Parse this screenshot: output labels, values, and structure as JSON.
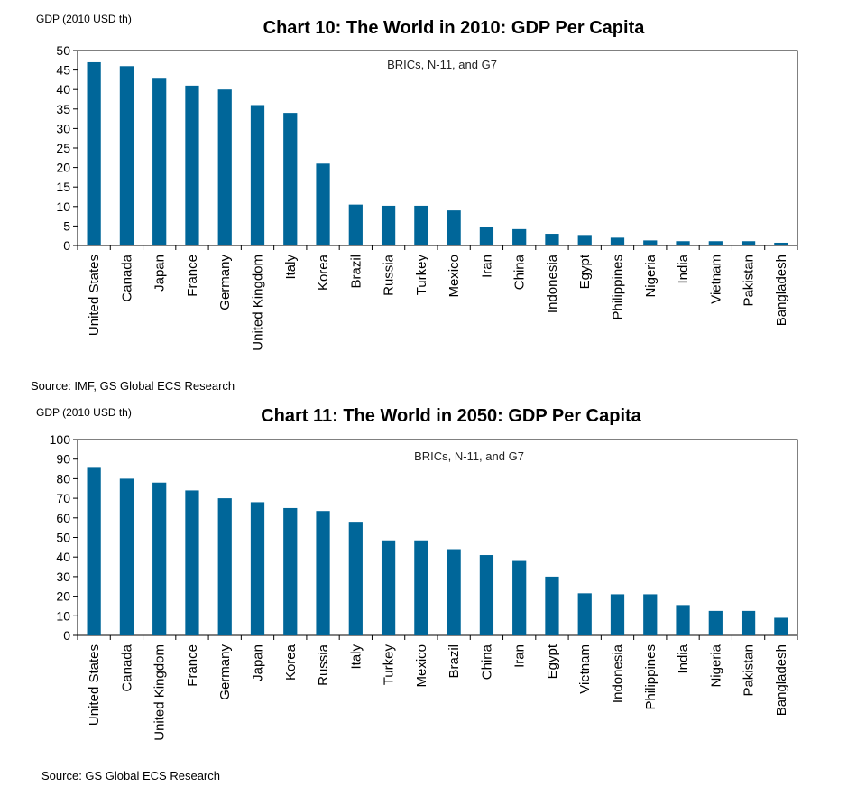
{
  "chart_data": [
    {
      "type": "bar",
      "title": "Chart 10: The World in 2010:  GDP Per Capita",
      "subtitle": "BRICs, N-11, and G7",
      "ylabel": "GDP (2010 USD th)",
      "ylim": [
        0,
        50
      ],
      "yticks": [
        0,
        5,
        10,
        15,
        20,
        25,
        30,
        35,
        40,
        45,
        50
      ],
      "categories": [
        "United States",
        "Canada",
        "Japan",
        "France",
        "Germany",
        "United Kingdom",
        "Italy",
        "Korea",
        "Brazil",
        "Russia",
        "Turkey",
        "Mexico",
        "Iran",
        "China",
        "Indonesia",
        "Egypt",
        "Philippines",
        "Nigeria",
        "India",
        "Vietnam",
        "Pakistan",
        "Bangladesh"
      ],
      "values": [
        47,
        46,
        43,
        41,
        40,
        36,
        34,
        21,
        10.5,
        10.2,
        10.2,
        9,
        4.8,
        4.2,
        3,
        2.7,
        2,
        1.3,
        1.1,
        1.1,
        1.1,
        0.7
      ],
      "color": "#006699",
      "grid": false,
      "source": "Source: IMF, GS Global ECS Research"
    },
    {
      "type": "bar",
      "title": "Chart 11: The World in 2050:  GDP Per Capita",
      "subtitle": "BRICs, N-11, and G7",
      "ylabel": "GDP (2010 USD th)",
      "ylim": [
        0,
        100
      ],
      "yticks": [
        0,
        10,
        20,
        30,
        40,
        50,
        60,
        70,
        80,
        90,
        100
      ],
      "categories": [
        "United States",
        "Canada",
        "United Kingdom",
        "France",
        "Germany",
        "Japan",
        "Korea",
        "Russia",
        "Italy",
        "Turkey",
        "Mexico",
        "Brazil",
        "China",
        "Iran",
        "Egypt",
        "Vietnam",
        "Indonesia",
        "Philippines",
        "India",
        "Nigeria",
        "Pakistan",
        "Bangladesh"
      ],
      "values": [
        86,
        80,
        78,
        74,
        70,
        68,
        65,
        63.5,
        58,
        48.5,
        48.5,
        44,
        41,
        38,
        30,
        21.5,
        21,
        21,
        15.5,
        12.5,
        12.5,
        9
      ],
      "color": "#006699",
      "grid": false,
      "source": "Source: GS Global ECS Research"
    }
  ]
}
